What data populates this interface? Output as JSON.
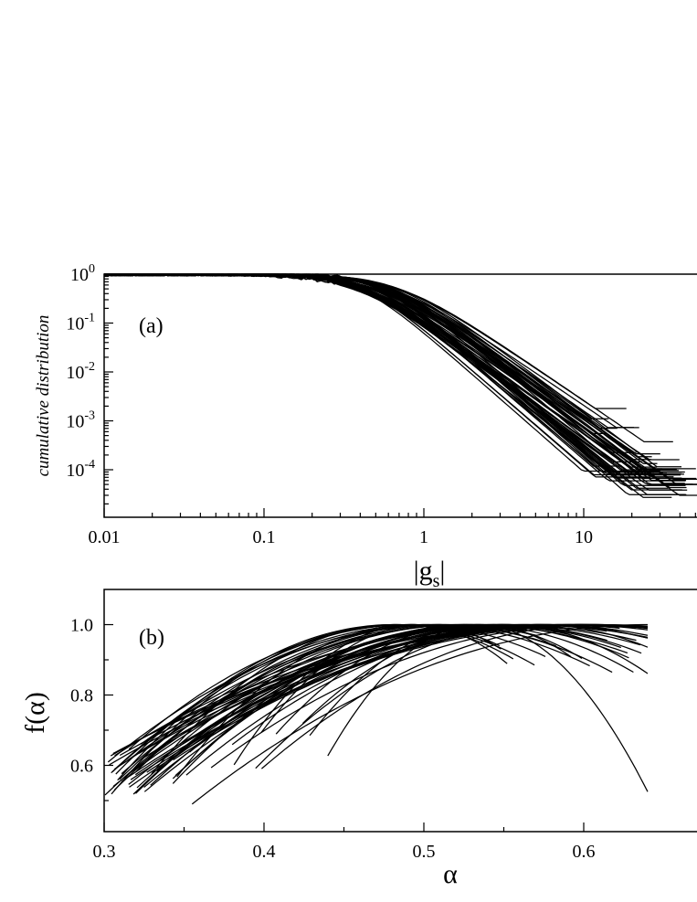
{
  "chart_data": [
    {
      "panel": "(a)",
      "type": "line",
      "xscale": "log",
      "yscale": "log",
      "xlim": [
        0.01,
        50
      ],
      "ylim": [
        2.5e-05,
        1.0
      ],
      "x_ticks": [
        {
          "value": 0.01,
          "label": "0.01"
        },
        {
          "value": 0.1,
          "label": "0.1"
        },
        {
          "value": 1,
          "label": "1"
        },
        {
          "value": 10,
          "label": "10"
        }
      ],
      "y_ticks": [
        {
          "value": 1,
          "base": "10",
          "exp": "0"
        },
        {
          "value": 0.1,
          "base": "10",
          "exp": "-1"
        },
        {
          "value": 0.01,
          "base": "10",
          "exp": "-2"
        },
        {
          "value": 0.001,
          "base": "10",
          "exp": "-3"
        },
        {
          "value": 0.0001,
          "base": "10",
          "exp": "-4"
        }
      ],
      "xlabel": {
        "main": "|g",
        "sub": "s",
        "close": "|"
      },
      "ylabel": "cumulative distribution",
      "grid": false,
      "description_of_series": "many overlapping curves, approx. 60",
      "series_envelope": {
        "x": [
          0.01,
          0.1,
          0.3,
          0.5,
          1,
          2,
          5,
          10,
          15,
          20,
          30,
          50
        ],
        "y_center": [
          0.98,
          0.97,
          0.8,
          0.55,
          0.25,
          0.08,
          0.011,
          0.0012,
          0.00025,
          8e-05,
          5e-05,
          4e-05
        ]
      }
    },
    {
      "panel": "(b)",
      "type": "line",
      "xlim": [
        0.3,
        0.64
      ],
      "ylim": [
        0.4,
        1.1
      ],
      "x_ticks": [
        {
          "value": 0.3,
          "label": "0.3"
        },
        {
          "value": 0.4,
          "label": "0.4"
        },
        {
          "value": 0.5,
          "label": "0.5"
        },
        {
          "value": 0.6,
          "label": "0.6"
        }
      ],
      "y_ticks": [
        {
          "value": 0.6,
          "label": "0.6"
        },
        {
          "value": 0.8,
          "label": "0.8"
        },
        {
          "value": 1.0,
          "label": "1.0"
        }
      ],
      "xlabel": "α",
      "ylabel": "f(α)",
      "grid": false,
      "description_of_series": "many overlapping concave curves, approx. 60",
      "series_envelope": {
        "alpha_peak_range": [
          0.48,
          0.63
        ],
        "f_at_peak": 1.0,
        "lowest_start": {
          "alpha": 0.355,
          "f": 0.49
        }
      }
    }
  ]
}
